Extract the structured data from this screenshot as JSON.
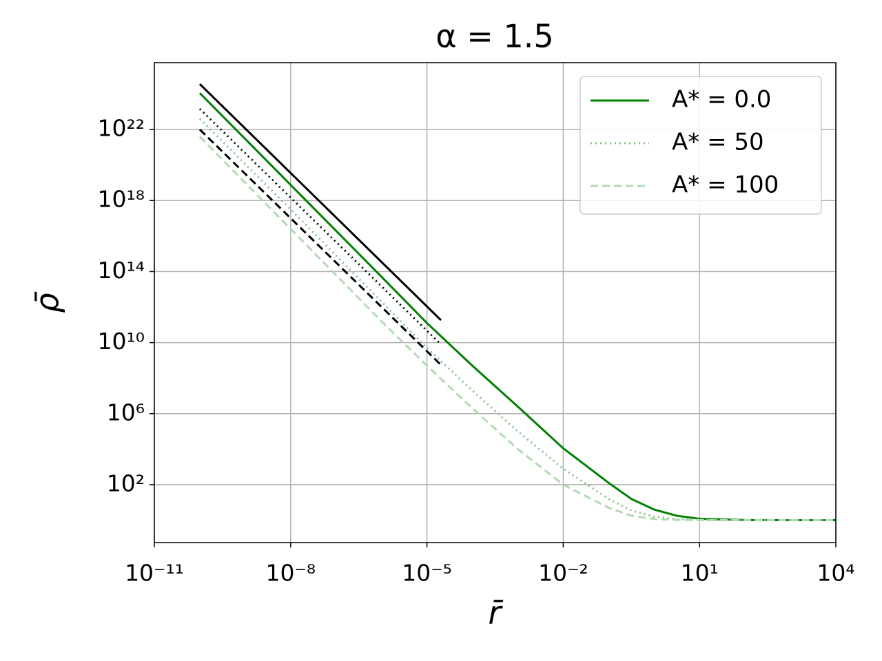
{
  "chart_data": {
    "type": "line",
    "title": "α = 1.5",
    "xlabel": "r̄",
    "ylabel": "ρ̄",
    "xscale": "log",
    "yscale": "log",
    "grid": true,
    "legend": "upper right",
    "xlim": [
      1e-11,
      10000.0
    ],
    "ylim": [
      0.055,
      5.8e+25
    ],
    "xticks": [
      {
        "value": 1e-11,
        "label": "10⁻¹¹"
      },
      {
        "value": 1e-08,
        "label": "10⁻⁸"
      },
      {
        "value": 1e-05,
        "label": "10⁻⁵"
      },
      {
        "value": 0.01,
        "label": "10⁻²"
      },
      {
        "value": 10,
        "label": "10¹"
      },
      {
        "value": 10000,
        "label": "10⁴"
      }
    ],
    "yticks": [
      {
        "value": 100,
        "label": "10²"
      },
      {
        "value": 1000000.0,
        "label": "10⁶"
      },
      {
        "value": 10000000000.0,
        "label": "10¹⁰"
      },
      {
        "value": 100000000000000.0,
        "label": "10¹⁴"
      },
      {
        "value": 1e+18,
        "label": "10¹⁸"
      },
      {
        "value": 1e+22,
        "label": "10²²"
      }
    ],
    "x": [
      1e-10,
      1e-08,
      1e-06,
      1e-05,
      0.0001,
      0.001,
      0.01,
      0.1,
      0.316,
      1,
      3.16,
      10,
      100,
      1000,
      10000
    ],
    "series": [
      {
        "name": "A* = 0.0",
        "color": "#008000",
        "linestyle": "solid",
        "values": [
          1.12e+24,
          7.6e+18,
          51000000000000.0,
          126000000000.0,
          500000000.0,
          2500000.0,
          11200,
          126,
          15.8,
          3.98,
          1.78,
          1.2,
          1.02,
          1,
          1
        ]
      },
      {
        "name": "A* = 50",
        "color": "#80bf80",
        "linestyle": "dotted",
        "values": [
          3.98e+22,
          3.16e+17,
          2000000000000.0,
          5000000000.0,
          20000000.0,
          100000,
          794,
          15.8,
          3.55,
          1.58,
          1.15,
          1.05,
          1,
          1,
          1
        ]
      },
      {
        "name": "A* = 100",
        "color": "#b3d9b3",
        "linestyle": "dashed",
        "values": [
          3.98e+21,
          2.5e+16,
          158000000000.0,
          500000000.0,
          2000000.0,
          10000,
          100,
          5,
          1.78,
          1.17,
          1.05,
          1,
          1,
          1,
          1
        ]
      },
      {
        "color": "#000000",
        "linestyle": "solid",
        "x": [
          1e-10,
          2.04e-05
        ],
        "values": [
          3.63e+24,
          182000000000.0
        ]
      },
      {
        "color": "#000000",
        "linestyle": "dotted",
        "x": [
          1e-10,
          2.04e-05
        ],
        "values": [
          1.45e+23,
          7900000000.0
        ]
      },
      {
        "color": "#000000",
        "linestyle": "dashed",
        "x": [
          1e-10,
          2.04e-05
        ],
        "values": [
          1e+22,
          550000000.0
        ]
      }
    ]
  }
}
